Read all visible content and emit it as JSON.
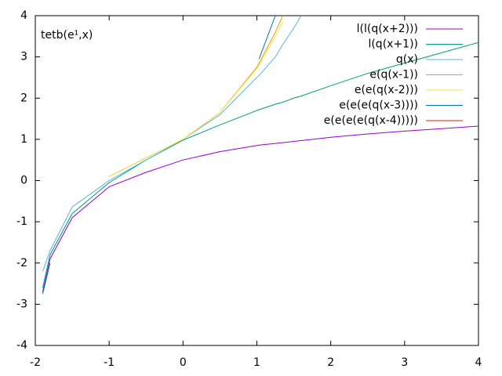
{
  "chart_data": {
    "type": "line",
    "title": "tetb(e¹,x)",
    "x": [
      -1.9,
      -1.8,
      -1.5,
      -1,
      -0.5,
      0,
      0.5,
      1,
      1.03,
      1.25,
      1.35,
      1.5,
      1.6,
      2,
      2.5,
      3,
      3.5,
      4
    ],
    "series": [
      {
        "name": "l(l(q(x+2)))",
        "color": "#9400d3",
        "values": [
          -2.7,
          -1.9,
          -0.9,
          -0.15,
          0.2,
          0.5,
          0.7,
          0.85,
          0.86,
          0.9,
          0.92,
          0.95,
          0.97,
          1.05,
          1.13,
          1.2,
          1.26,
          1.32
        ]
      },
      {
        "name": "l(q(x+1))",
        "color": "#009e73",
        "values": [
          -2.6,
          -1.8,
          -0.8,
          -0.05,
          0.5,
          0.98,
          1.35,
          1.7,
          1.72,
          1.85,
          1.9,
          2.0,
          2.05,
          2.3,
          2.6,
          2.85,
          3.1,
          3.35
        ]
      },
      {
        "name": "q(x)",
        "color": "#56b4e9",
        "values": [
          -2.2,
          -1.7,
          -0.64,
          0,
          0.5,
          1,
          1.6,
          2.5,
          2.55,
          3.0,
          3.3,
          3.7,
          4.0,
          null,
          null,
          null,
          null,
          null
        ]
      },
      {
        "name": "e(q(x-1))",
        "color": "#e69f00",
        "values": [
          null,
          null,
          null,
          0.1,
          0.55,
          1.0,
          1.65,
          2.75,
          2.85,
          3.6,
          4.0,
          null,
          null,
          null,
          null,
          null,
          null,
          null
        ]
      },
      {
        "name": "e(e(q(x-2)))",
        "color": "#f0e442",
        "values": [
          null,
          null,
          null,
          0.1,
          0.55,
          1.0,
          1.65,
          2.72,
          2.8,
          3.5,
          3.85,
          null,
          null,
          null,
          null,
          null,
          null,
          null
        ]
      },
      {
        "name": "e(e(e(q(x-3))))",
        "color": "#0072b2",
        "values": [
          -2.75,
          -2.0,
          null,
          null,
          null,
          null,
          null,
          null,
          2.95,
          4.0,
          null,
          null,
          null,
          null,
          null,
          null,
          null,
          null
        ]
      },
      {
        "name": "e(e(e(e(q(x-4)))))",
        "color": "#e51e10",
        "values": [
          null,
          null,
          null,
          null,
          null,
          null,
          null,
          null,
          null,
          null,
          null,
          null,
          null,
          null,
          null,
          null,
          null,
          null
        ]
      }
    ],
    "xlim": [
      -2,
      4
    ],
    "xticks": [
      -2,
      -1,
      0,
      1,
      2,
      3,
      4
    ],
    "ylim": [
      -4,
      4
    ],
    "yticks": [
      -4,
      -3,
      -2,
      -1,
      0,
      1,
      2,
      3,
      4
    ],
    "legend": "upper right"
  }
}
